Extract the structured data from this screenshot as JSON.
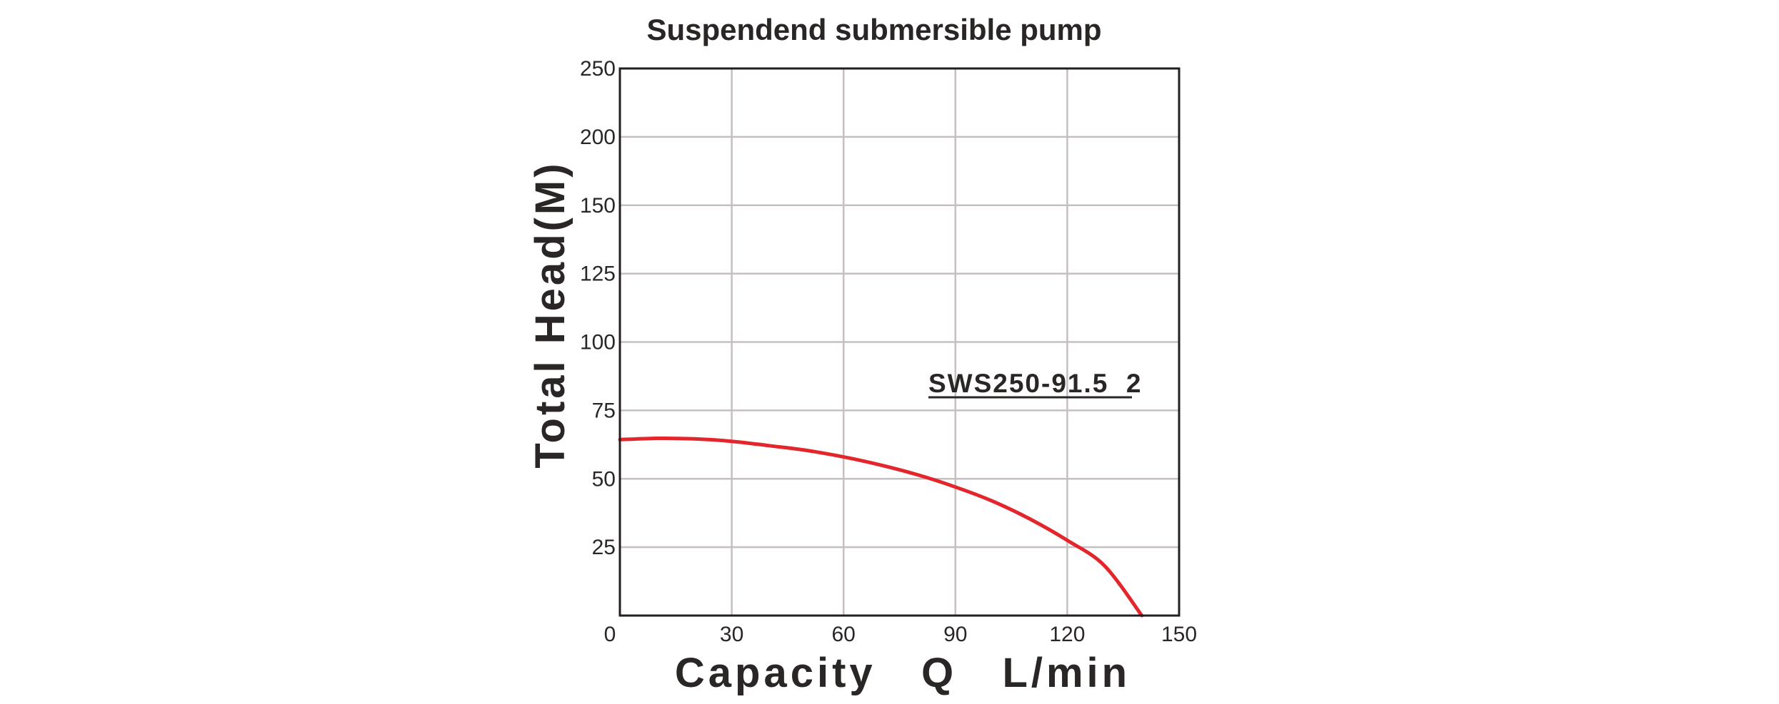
{
  "chart_data": {
    "type": "line",
    "title": "Suspendend submersible pump",
    "xlabel": "Capacity   Q   L/min",
    "ylabel": "Total  Head(M)",
    "x_ticks": [
      0,
      30,
      60,
      90,
      120,
      150
    ],
    "y_tick_values": [
      25,
      50,
      75,
      100,
      125,
      150,
      200,
      250
    ],
    "y_tick_labels": [
      "25",
      "50",
      "75",
      "100",
      "125",
      "150",
      "200",
      "250"
    ],
    "y_grid_positions": [
      0,
      1,
      2,
      3,
      4,
      5,
      6,
      7,
      8
    ],
    "xlim": [
      0,
      150
    ],
    "grid": true,
    "series": [
      {
        "name": "SWS250-91.5  2",
        "color": "#e3262c",
        "x": [
          0,
          10,
          20,
          30,
          40,
          50,
          60,
          70,
          80,
          90,
          100,
          110,
          120,
          130,
          140
        ],
        "y": [
          64.3,
          64.8,
          64.6,
          63.7,
          62.1,
          60.4,
          58.0,
          55.0,
          51.4,
          47.0,
          41.8,
          35.3,
          27.5,
          18.2,
          0.0
        ]
      }
    ]
  }
}
